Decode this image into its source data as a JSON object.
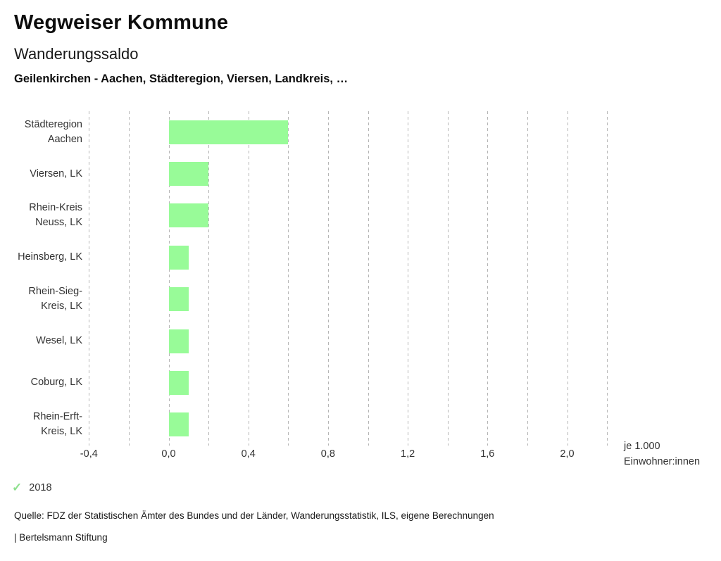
{
  "header": {
    "app_title": "Wegweiser Kommune"
  },
  "chart_data": {
    "type": "bar",
    "orientation": "horizontal",
    "title": "Wanderungssaldo",
    "subtitle": "Geilenkirchen - Aachen, Städteregion, Viersen, Landkreis, …",
    "categories": [
      "Städteregion Aachen",
      "Viersen, LK",
      "Rhein-Kreis Neuss, LK",
      "Heinsberg, LK",
      "Rhein-Sieg-Kreis, LK",
      "Wesel, LK",
      "Coburg, LK",
      "Rhein-Erft-Kreis, LK"
    ],
    "category_label_lines": [
      [
        "Städteregion",
        "Aachen"
      ],
      [
        "Viersen, LK"
      ],
      [
        "Rhein-Kreis",
        "Neuss, LK"
      ],
      [
        "Heinsberg, LK"
      ],
      [
        "Rhein-Sieg-",
        "Kreis, LK"
      ],
      [
        "Wesel, LK"
      ],
      [
        "Coburg, LK"
      ],
      [
        "Rhein-Erft-",
        "Kreis, LK"
      ]
    ],
    "series": [
      {
        "name": "2018",
        "values": [
          0.6,
          0.2,
          0.2,
          0.1,
          0.1,
          0.1,
          0.1,
          0.1
        ],
        "color": "#98fb98"
      }
    ],
    "xlabel": "je 1.000 Einwohner:innen",
    "unit_label_lines": [
      "je 1.000",
      "Einwohner:innen"
    ],
    "xlim": [
      -0.5,
      2.3
    ],
    "gridline_values": [
      -0.4,
      -0.2,
      0.0,
      0.2,
      0.4,
      0.6,
      0.8,
      1.0,
      1.2,
      1.4,
      1.6,
      1.8,
      2.0,
      2.2
    ],
    "xticks": [
      {
        "value": -0.4,
        "label": "-0,4"
      },
      {
        "value": 0.0,
        "label": "0,0"
      },
      {
        "value": 0.4,
        "label": "0,4"
      },
      {
        "value": 0.8,
        "label": "0,8"
      },
      {
        "value": 1.2,
        "label": "1,2"
      },
      {
        "value": 1.6,
        "label": "1,6"
      },
      {
        "value": 2.0,
        "label": "2,0"
      }
    ],
    "grid": "vertical-dashed",
    "legend_position": "bottom-left",
    "legend": {
      "items": [
        {
          "label": "2018",
          "icon": "check-icon",
          "color": "#8ee08e",
          "active": true
        }
      ]
    }
  },
  "footer": {
    "source_line": "Quelle: FDZ der Statistischen Ämter des Bundes und der Länder, Wanderungsstatistik, ILS, eigene Berechnungen",
    "attribution_line": "| Bertelsmann Stiftung"
  },
  "colors": {
    "bar_green": "#98fb98",
    "legend_check_green": "#8ee08e",
    "gridline_gray": "#b5b5b5",
    "text_dark": "#0d0d0d",
    "text_medium": "#333333"
  }
}
